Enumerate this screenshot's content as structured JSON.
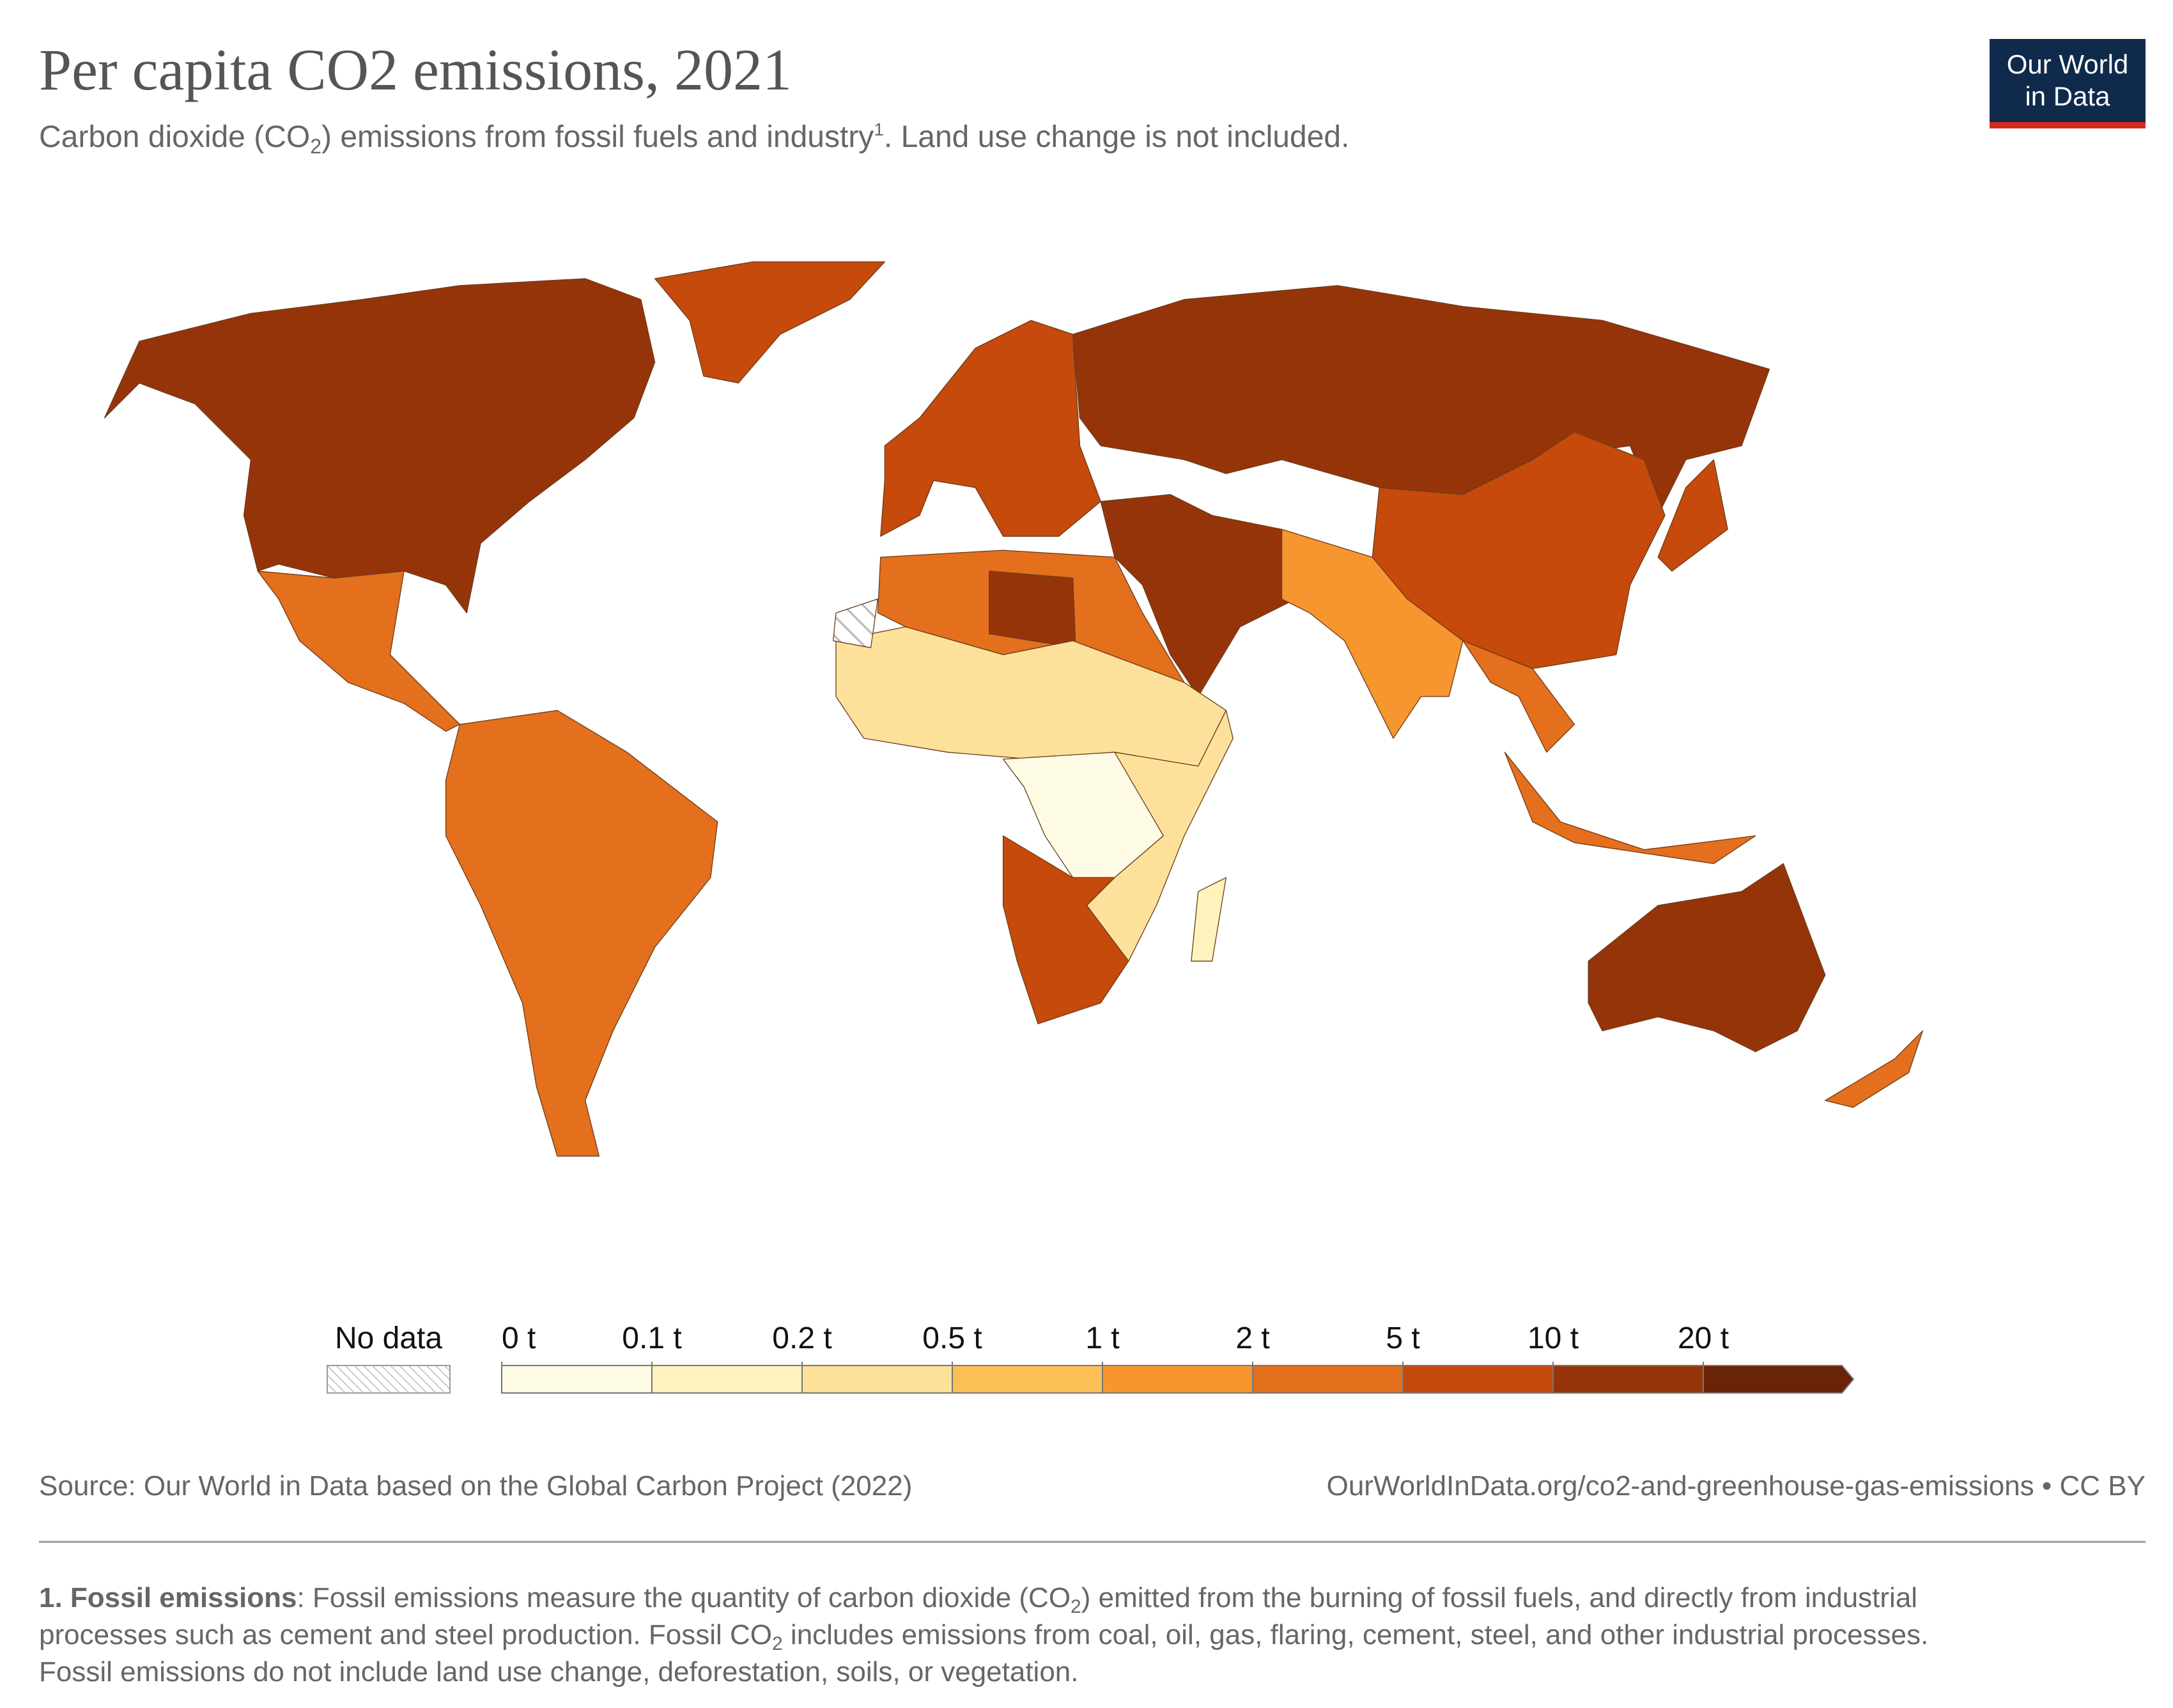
{
  "chart_data": {
    "type": "choropleth",
    "title": "Per capita CO2 emissions, 2021",
    "subtitle": [
      "Carbon dioxide (CO",
      "2",
      ") emissions from fossil fuels and industry",
      "1",
      ". Land use change is not included."
    ],
    "logo": [
      "Our World",
      "in Data"
    ],
    "legend": {
      "no_data_label": "No data",
      "ticks": [
        {
          "value": 0,
          "label": "0 t"
        },
        {
          "value": 0.1,
          "label": "0.1 t"
        },
        {
          "value": 0.2,
          "label": "0.2 t"
        },
        {
          "value": 0.5,
          "label": "0.5 t"
        },
        {
          "value": 1,
          "label": "1 t"
        },
        {
          "value": 2,
          "label": "2 t"
        },
        {
          "value": 5,
          "label": "5 t"
        },
        {
          "value": 10,
          "label": "10 t"
        },
        {
          "value": 20,
          "label": "20 t"
        }
      ],
      "colors": [
        "#fefbe4",
        "#fef2bd",
        "#fde19a",
        "#fbbf55",
        "#f7952f",
        "#e46f1c",
        "#c54a0b",
        "#963409",
        "#692306"
      ]
    },
    "source": "Source: Our World in Data based on the Global Carbon Project (2022)",
    "url": "OurWorldInData.org/co2-and-greenhouse-gas-emissions • CC BY",
    "footnote": {
      "lead": "1. Fossil emissions",
      "lines": [
        [
          ": Fossil emissions measure the quantity of carbon dioxide (CO",
          "2",
          ") emitted from the burning of fossil fuels, and directly from industrial"
        ],
        [
          "processes such as cement and steel production. Fossil CO",
          "2",
          " includes emissions from coal, oil, gas, flaring, cement, steel, and other industrial processes."
        ],
        [
          "Fossil emissions do not include land use change, deforestation, soils, or vegetation."
        ]
      ]
    }
  }
}
